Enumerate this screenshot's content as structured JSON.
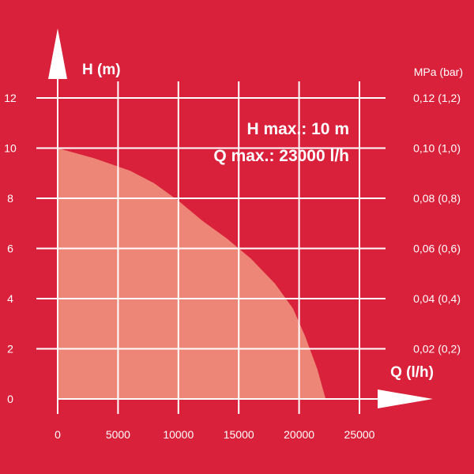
{
  "chart_data": {
    "type": "area",
    "title": "",
    "xlabel": "Q (l/h)",
    "ylabel": "H (m)",
    "y2label": "MPa (bar)",
    "xlim": [
      0,
      25000
    ],
    "ylim": [
      0,
      12
    ],
    "x_ticks": [
      "0",
      "5000",
      "10000",
      "15000",
      "20000",
      "25000"
    ],
    "y_ticks": [
      "0",
      "2",
      "4",
      "6",
      "8",
      "10",
      "12"
    ],
    "y2_ticks": [
      "0,02 (0,2)",
      "0,04 (0,4)",
      "0,06 (0,6)",
      "0,08 (0,8)",
      "0,10 (1,0)",
      "0,12 (1,2)"
    ],
    "grid": true,
    "annotations": [
      "H max.: 10 m",
      "Q max.: 23000 l/h"
    ],
    "series": [
      {
        "x": [
          0,
          3000,
          6000,
          8000,
          10000,
          12000,
          14000,
          16000,
          18000,
          19500,
          20500,
          21500,
          22200
        ],
        "y": [
          10,
          9.6,
          9.1,
          8.6,
          7.9,
          7.1,
          6.4,
          5.6,
          4.6,
          3.6,
          2.5,
          1.2,
          0
        ]
      }
    ],
    "colors": {
      "background": "#d9213b",
      "fill": "#ee8677",
      "grid": "#ffffff"
    }
  }
}
